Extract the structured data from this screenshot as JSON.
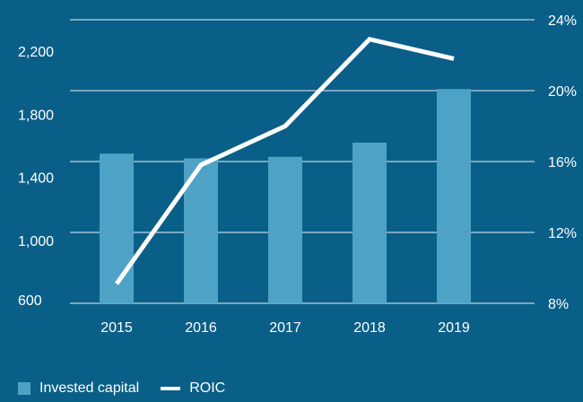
{
  "chart_data": {
    "type": "bar+line",
    "categories": [
      "2015",
      "2016",
      "2017",
      "2018",
      "2019"
    ],
    "series": [
      {
        "name": "Invested capital",
        "type": "bar",
        "axis": "left",
        "values": [
          1550,
          1520,
          1530,
          1620,
          1960
        ]
      },
      {
        "name": "ROIC",
        "type": "line",
        "axis": "right",
        "values": [
          9.1,
          15.8,
          18.0,
          22.9,
          21.8
        ]
      }
    ],
    "left_axis": {
      "ticks": [
        "600",
        "1,000",
        "1,400",
        "1,800",
        "2,200"
      ],
      "tick_values": [
        600,
        1000,
        1400,
        1800,
        2200
      ],
      "range": [
        600,
        2400
      ]
    },
    "right_axis": {
      "ticks": [
        "8%",
        "12%",
        "16%",
        "20%",
        "24%"
      ],
      "tick_values": [
        8,
        12,
        16,
        20,
        24
      ],
      "range": [
        8,
        24
      ]
    },
    "grid": true,
    "legend_position": "bottom-left",
    "colors": {
      "background": "#0a5f88",
      "bar": "#4ea2c5",
      "line": "#ffffff",
      "grid": "#ffffff",
      "text": "#ffffff"
    }
  }
}
